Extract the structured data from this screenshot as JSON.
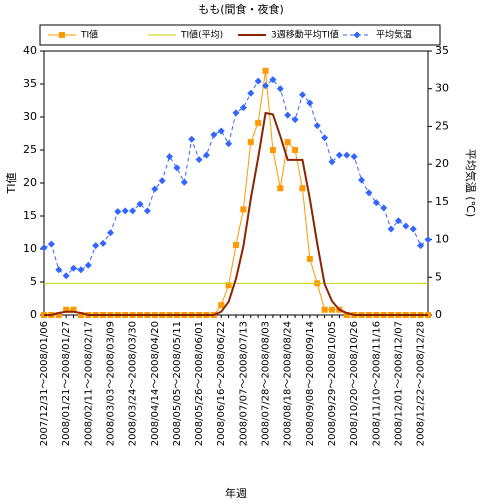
{
  "chart_data": {
    "type": "line",
    "title": "もも(間食・夜食)",
    "x_label": "年週",
    "y_label": "TI値",
    "y2_label": "平均気温 (℃)",
    "categories": [
      "2007/12/31～2008/01/06",
      null,
      null,
      "2008/01/21～2008/01/27",
      null,
      null,
      "2008/02/11～2008/02/17",
      null,
      null,
      "2008/03/03～2008/03/09",
      null,
      null,
      "2008/03/24～2008/03/30",
      null,
      null,
      "2008/04/14～2008/04/20",
      null,
      null,
      "2008/05/05～2008/05/11",
      null,
      null,
      "2008/05/26～2008/06/01",
      null,
      null,
      "2008/06/16～2008/06/22",
      null,
      null,
      "2008/07/07～2008/07/13",
      null,
      null,
      "2008/07/28～2008/08/03",
      null,
      null,
      "2008/08/18～2008/08/24",
      null,
      null,
      "2008/09/08～2008/09/14",
      null,
      null,
      "2008/09/29～2008/10/05",
      null,
      null,
      "2008/10/20～2008/10/26",
      null,
      null,
      "2008/11/10～2008/11/16",
      null,
      null,
      "2008/12/01～2008/12/07",
      null,
      null,
      "2008/12/22～2008/12/28",
      null
    ],
    "ylim": [
      0,
      40
    ],
    "yticks": [
      0,
      5,
      10,
      15,
      20,
      25,
      30,
      35,
      40
    ],
    "y2lim": [
      0,
      35
    ],
    "y2ticks": [
      0,
      5,
      10,
      15,
      20,
      25,
      30,
      35
    ],
    "legend": "top",
    "series": [
      {
        "name": "TI値",
        "color": "#ff9900",
        "marker": "square",
        "dash": false,
        "width": 1,
        "values": [
          0,
          0,
          0,
          0.8,
          0.8,
          0,
          0,
          0,
          0,
          0,
          0,
          0,
          0,
          0,
          0,
          0,
          0,
          0,
          0,
          0,
          0,
          0,
          0,
          0,
          1.5,
          4.5,
          10.6,
          16,
          26.2,
          29.1,
          37,
          25,
          19.2,
          26.2,
          25,
          19.2,
          8.5,
          4.8,
          0.8,
          0.8,
          0.8,
          0,
          0,
          0,
          0,
          0,
          0,
          0,
          0,
          0,
          0,
          0,
          0
        ]
      },
      {
        "name": "TI値(平均)",
        "color": "#c8d200",
        "marker": "none",
        "dash": false,
        "width": 1,
        "values": [
          4.8,
          4.8,
          4.8,
          4.8,
          4.8,
          4.8,
          4.8,
          4.8,
          4.8,
          4.8,
          4.8,
          4.8,
          4.8,
          4.8,
          4.8,
          4.8,
          4.8,
          4.8,
          4.8,
          4.8,
          4.8,
          4.8,
          4.8,
          4.8,
          4.8,
          4.8,
          4.8,
          4.8,
          4.8,
          4.8,
          4.8,
          4.8,
          4.8,
          4.8,
          4.8,
          4.8,
          4.8,
          4.8,
          4.8,
          4.8,
          4.8,
          4.8,
          4.8,
          4.8,
          4.8,
          4.8,
          4.8,
          4.8,
          4.8,
          4.8,
          4.8,
          4.8,
          4.8
        ]
      },
      {
        "name": "3週移動平均TI値",
        "color": "#8b2500",
        "marker": "none",
        "dash": false,
        "width": 2,
        "values": [
          0,
          0,
          0.3,
          0.5,
          0.5,
          0.3,
          0,
          0,
          0,
          0,
          0,
          0,
          0,
          0,
          0,
          0,
          0,
          0,
          0,
          0,
          0,
          0,
          0,
          0,
          0.5,
          2,
          5.5,
          10.4,
          17.6,
          23.8,
          30.6,
          30.4,
          27.1,
          23.5,
          23.5,
          23.5,
          17.6,
          10.8,
          4.7,
          2.1,
          0.8,
          0.3,
          0,
          0,
          0,
          0,
          0,
          0,
          0,
          0,
          0,
          0,
          0
        ]
      },
      {
        "name": "平均気温",
        "color": "#3366ff",
        "marker": "diamond",
        "dash": true,
        "width": 1,
        "axis": "y2",
        "values": [
          8.9,
          9.4,
          6.0,
          5.2,
          6.2,
          6.0,
          6.6,
          9.2,
          9.5,
          10.9,
          13.7,
          13.8,
          13.8,
          14.7,
          13.8,
          16.7,
          17.8,
          21.0,
          19.5,
          17.6,
          23.3,
          20.6,
          21.2,
          23.9,
          24.4,
          22.7,
          26.8,
          27.5,
          29.4,
          31.0,
          30.4,
          31.2,
          30.0,
          26.5,
          25.9,
          29.2,
          28.1,
          25.1,
          23.5,
          20.3,
          21.2,
          21.2,
          21.0,
          17.9,
          16.2,
          14.9,
          14.2,
          11.4,
          12.5,
          11.8,
          11.4,
          9.2,
          10.0
        ]
      }
    ]
  }
}
